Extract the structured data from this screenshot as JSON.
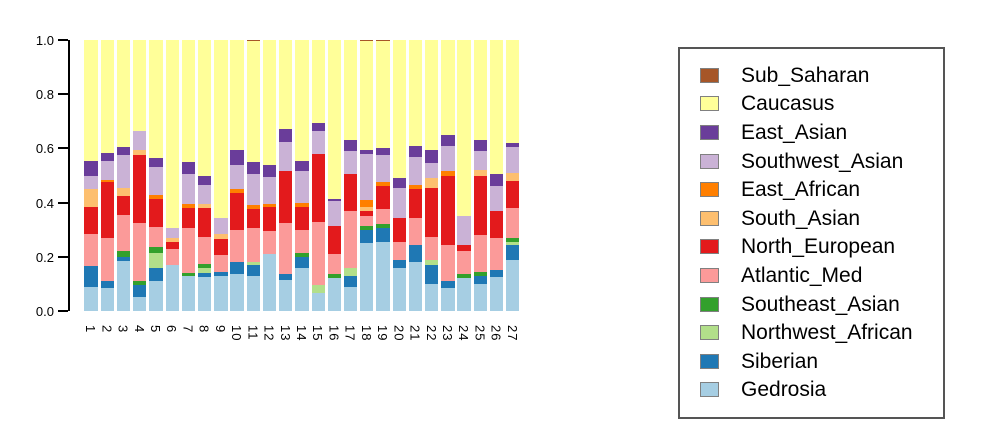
{
  "figure": {
    "background": "#ffffff"
  },
  "y_axis": {
    "tick_labels": [
      "0.0",
      "0.2",
      "0.4",
      "0.6",
      "0.8",
      "1.0"
    ],
    "tick_values": [
      0.0,
      0.2,
      0.4,
      0.6,
      0.8,
      1.0
    ]
  },
  "x_axis": {
    "labels": [
      "1",
      "2",
      "3",
      "4",
      "5",
      "6",
      "7",
      "8",
      "9",
      "10",
      "11",
      "12",
      "13",
      "14",
      "15",
      "16",
      "17",
      "18",
      "19",
      "20",
      "21",
      "22",
      "23",
      "24",
      "25",
      "26",
      "27"
    ]
  },
  "legend": {
    "order_top_to_bottom": [
      "Sub_Saharan",
      "Caucasus",
      "East_Asian",
      "Southwest_Asian",
      "East_African",
      "South_Asian",
      "North_European",
      "Atlantic_Med",
      "Southeast_Asian",
      "Northwest_African",
      "Siberian",
      "Gedrosia"
    ]
  },
  "chart_data": {
    "type": "bar",
    "stacked": true,
    "ylim": [
      0,
      1
    ],
    "grid": false,
    "legend_position": "right",
    "title": "",
    "xlabel": "",
    "ylabel": "",
    "categories": [
      "1",
      "2",
      "3",
      "4",
      "5",
      "6",
      "7",
      "8",
      "9",
      "10",
      "11",
      "12",
      "13",
      "14",
      "15",
      "16",
      "17",
      "18",
      "19",
      "20",
      "21",
      "22",
      "23",
      "24",
      "25",
      "26",
      "27"
    ],
    "stack_order": "bottom_to_top",
    "series": [
      {
        "name": "Gedrosia",
        "color": "#A6CEE3",
        "values": [
          0.09,
          0.085,
          0.185,
          0.05,
          0.11,
          0.17,
          0.13,
          0.125,
          0.13,
          0.135,
          0.13,
          0.21,
          0.115,
          0.16,
          0.065,
          0.12,
          0.09,
          0.25,
          0.255,
          0.16,
          0.18,
          0.1,
          0.085,
          0.12,
          0.1,
          0.125,
          0.19
        ]
      },
      {
        "name": "Siberian",
        "color": "#1F78B4",
        "values": [
          0.075,
          0.025,
          0.015,
          0.045,
          0.05,
          0,
          0,
          0.015,
          0.015,
          0.045,
          0.04,
          0,
          0.02,
          0.04,
          0,
          0,
          0.04,
          0.05,
          0.05,
          0.03,
          0.065,
          0.07,
          0.025,
          0,
          0.03,
          0.025,
          0.055
        ]
      },
      {
        "name": "Northwest_African",
        "color": "#B2DF8A",
        "values": [
          0,
          0,
          0,
          0,
          0.055,
          0,
          0,
          0.02,
          0,
          0,
          0.01,
          0,
          0,
          0,
          0.03,
          0,
          0.03,
          0,
          0,
          0,
          0,
          0.02,
          0,
          0,
          0,
          0,
          0.01
        ]
      },
      {
        "name": "Southeast_Asian",
        "color": "#33A02C",
        "values": [
          0,
          0,
          0.02,
          0.015,
          0.02,
          0,
          0.01,
          0.015,
          0,
          0,
          0,
          0,
          0,
          0.015,
          0,
          0.015,
          0,
          0.015,
          0.015,
          0,
          0,
          0,
          0,
          0.015,
          0.015,
          0,
          0.015
        ]
      },
      {
        "name": "Atlantic_Med",
        "color": "#FB9A99",
        "values": [
          0.12,
          0.16,
          0.135,
          0.215,
          0.075,
          0.06,
          0.165,
          0.1,
          0.06,
          0.12,
          0.125,
          0.085,
          0.19,
          0.085,
          0.235,
          0.075,
          0.21,
          0.035,
          0.055,
          0.065,
          0.1,
          0.085,
          0.135,
          0.085,
          0.135,
          0.12,
          0.11
        ]
      },
      {
        "name": "North_European",
        "color": "#E31A1C",
        "values": [
          0.1,
          0.205,
          0.07,
          0.25,
          0.105,
          0.025,
          0.075,
          0.105,
          0.06,
          0.135,
          0.07,
          0.09,
          0.19,
          0.085,
          0.25,
          0.105,
          0.135,
          0.02,
          0.085,
          0.09,
          0.105,
          0.18,
          0.255,
          0.025,
          0.22,
          0.1,
          0.1
        ]
      },
      {
        "name": "South_Asian",
        "color": "#FDBF6F",
        "values": [
          0.065,
          0,
          0.03,
          0.02,
          0,
          0.015,
          0,
          0.015,
          0.02,
          0,
          0,
          0,
          0,
          0,
          0,
          0,
          0,
          0.015,
          0,
          0,
          0,
          0.035,
          0,
          0,
          0.02,
          0,
          0.03
        ]
      },
      {
        "name": "East_African",
        "color": "#FF7F00",
        "values": [
          0,
          0.01,
          0,
          0,
          0.015,
          0,
          0.015,
          0,
          0,
          0.015,
          0.015,
          0.01,
          0,
          0.015,
          0,
          0,
          0,
          0.025,
          0.015,
          0,
          0.015,
          0,
          0.015,
          0,
          0,
          0,
          0
        ]
      },
      {
        "name": "Southwest_Asian",
        "color": "#CAB2D6",
        "values": [
          0.05,
          0.07,
          0.12,
          0.07,
          0.1,
          0.035,
          0.11,
          0.07,
          0.06,
          0.09,
          0.115,
          0.1,
          0.11,
          0.115,
          0.085,
          0.09,
          0.085,
          0.17,
          0.1,
          0.11,
          0.105,
          0.055,
          0.095,
          0.105,
          0.07,
          0.09,
          0.095
        ]
      },
      {
        "name": "East_Asian",
        "color": "#6A3D9A",
        "values": [
          0.055,
          0.03,
          0.03,
          0,
          0.035,
          0,
          0.045,
          0.035,
          0,
          0.055,
          0.045,
          0.045,
          0.045,
          0.04,
          0.03,
          0.01,
          0.04,
          0.015,
          0.025,
          0.035,
          0.04,
          0.05,
          0.04,
          0,
          0.04,
          0.045,
          0.015
        ]
      },
      {
        "name": "Caucasus",
        "color": "#FFFF99",
        "values": [
          0.445,
          0.415,
          0.395,
          0.335,
          0.435,
          0.695,
          0.45,
          0.5,
          0.655,
          0.405,
          0.445,
          0.46,
          0.33,
          0.445,
          0.305,
          0.585,
          0.37,
          0.4,
          0.395,
          0.51,
          0.39,
          0.405,
          0.35,
          0.65,
          0.37,
          0.495,
          0.38
        ]
      },
      {
        "name": "Sub_Saharan",
        "color": "#A65628",
        "values": [
          0,
          0,
          0,
          0,
          0,
          0,
          0,
          0,
          0,
          0,
          0.005,
          0,
          0,
          0,
          0,
          0,
          0,
          0.005,
          0.005,
          0,
          0,
          0,
          0,
          0,
          0,
          0,
          0
        ]
      }
    ]
  }
}
